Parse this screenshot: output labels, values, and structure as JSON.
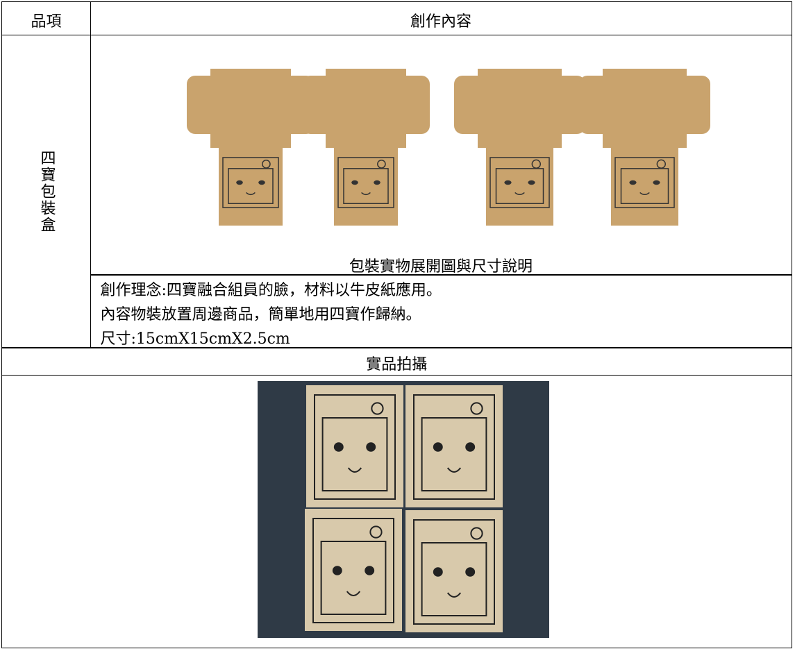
{
  "header": {
    "item": "品項",
    "content": "創作內容"
  },
  "item_name": "四寶包裝盒",
  "dieline_caption": "包裝實物展開圖與尺寸說明",
  "concept": [
    "創作理念:四寶融合組員的臉，材料以牛皮紙應用。",
    "內容物裝放置周邊商品，簡單地用四寶作歸納。",
    "尺寸:15cmX15cmX2.5cm"
  ],
  "photo_title": "實品拍攝"
}
